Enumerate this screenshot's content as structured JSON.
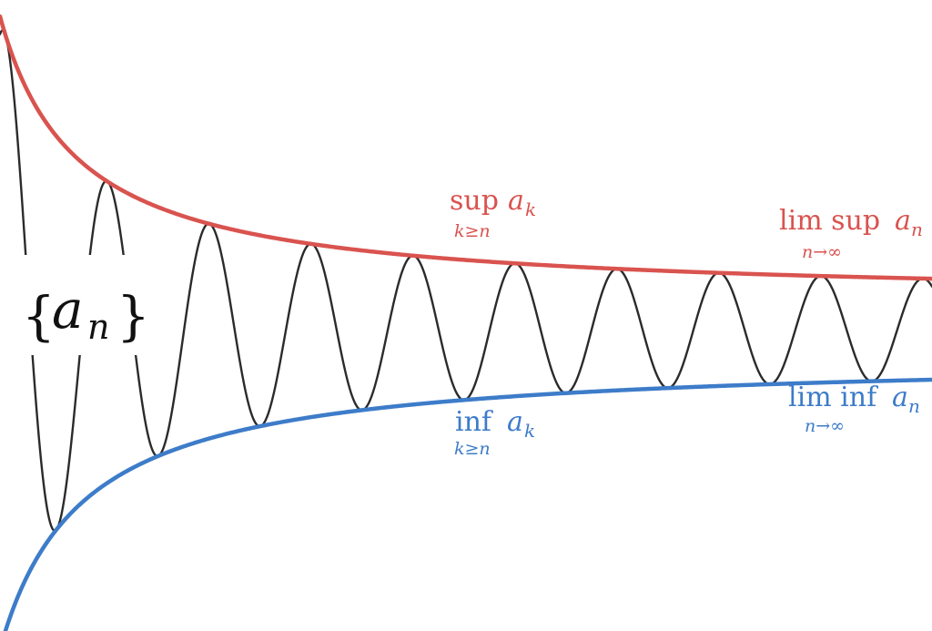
{
  "colors": {
    "background": "#ffffff",
    "upper_envelope": "#d9534f",
    "lower_envelope": "#3d7cc9",
    "sequence": "#2b2b2b"
  },
  "labels": {
    "sequence": {
      "open": "{",
      "base": "a",
      "sub": "n",
      "close": "}"
    },
    "sup": {
      "op": "sup",
      "var": "a",
      "var_sub": "k",
      "under": "k≥n"
    },
    "limsup": {
      "op": "lim sup",
      "var": "a",
      "var_sub": "n",
      "under": "n→∞"
    },
    "inf": {
      "op": "inf",
      "var": "a",
      "var_sub": "k",
      "under": "k≥n"
    },
    "liminf": {
      "op": "lim inf",
      "var": "a",
      "var_sub": "n",
      "under": "n→∞"
    }
  }
}
